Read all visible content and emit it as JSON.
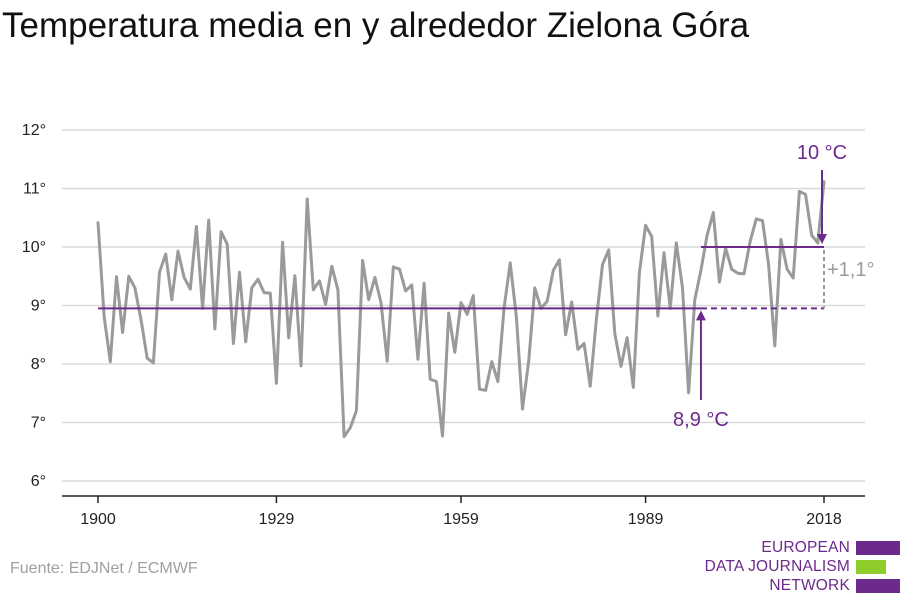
{
  "title": "Temperatura media en y alrededor Zielona Góra",
  "source": "Fuente: EDJNet / ECMWF",
  "logo": {
    "lines": [
      "EUROPEAN",
      "DATA JOURNALISM",
      "NETWORK"
    ],
    "colors": [
      "#6b2a8c",
      "#8fce2a",
      "#6b2a8c"
    ]
  },
  "colors": {
    "series": "#9a9a9a",
    "accent": "#6b2a8c",
    "grid": "#d9d9d9",
    "axis": "#222222"
  },
  "chart_data": {
    "type": "line",
    "title": "Temperatura media en y alrededor Zielona Góra",
    "xlabel": "",
    "ylabel": "",
    "xlim": [
      1900,
      2018
    ],
    "ylim": [
      6,
      12
    ],
    "grid": true,
    "x_ticks": [
      1900,
      1929,
      1959,
      1989,
      2018
    ],
    "x_tick_labels": [
      "1900",
      "1929",
      "1959",
      "1989",
      "2018"
    ],
    "y_ticks": [
      6,
      7,
      8,
      9,
      10,
      11,
      12
    ],
    "y_tick_labels": [
      "6°",
      "7°",
      "8°",
      "9°",
      "10°",
      "11°",
      "12°"
    ],
    "x": [
      1900,
      1901,
      1902,
      1903,
      1904,
      1905,
      1906,
      1907,
      1908,
      1909,
      1910,
      1911,
      1912,
      1913,
      1914,
      1915,
      1916,
      1917,
      1918,
      1919,
      1920,
      1921,
      1922,
      1923,
      1924,
      1925,
      1926,
      1927,
      1928,
      1929,
      1930,
      1931,
      1932,
      1933,
      1934,
      1935,
      1936,
      1937,
      1938,
      1939,
      1940,
      1941,
      1942,
      1943,
      1944,
      1945,
      1946,
      1947,
      1948,
      1949,
      1950,
      1951,
      1952,
      1953,
      1954,
      1955,
      1956,
      1957,
      1958,
      1959,
      1960,
      1961,
      1962,
      1963,
      1964,
      1965,
      1966,
      1967,
      1968,
      1969,
      1970,
      1971,
      1972,
      1973,
      1974,
      1975,
      1976,
      1977,
      1978,
      1979,
      1980,
      1981,
      1982,
      1983,
      1984,
      1985,
      1986,
      1987,
      1988,
      1989,
      1990,
      1991,
      1992,
      1993,
      1994,
      1995,
      1996,
      1997,
      1998,
      1999,
      2000,
      2001,
      2002,
      2003,
      2004,
      2005,
      2006,
      2007,
      2008,
      2009,
      2010,
      2011,
      2012,
      2013,
      2014,
      2015,
      2016,
      2017,
      2018
    ],
    "values": [
      10.42,
      8.8,
      8.04,
      9.49,
      8.54,
      9.5,
      9.3,
      8.75,
      8.1,
      8.02,
      9.57,
      9.88,
      9.1,
      9.93,
      9.48,
      9.28,
      10.35,
      8.95,
      10.46,
      8.6,
      10.26,
      10.05,
      8.35,
      9.57,
      8.38,
      9.3,
      9.45,
      9.22,
      9.21,
      7.67,
      10.08,
      8.45,
      9.51,
      7.97,
      10.82,
      9.27,
      9.42,
      9.02,
      9.67,
      9.27,
      6.76,
      6.91,
      7.2,
      9.77,
      9.1,
      9.48,
      9.05,
      8.05,
      9.66,
      9.62,
      9.25,
      9.35,
      8.08,
      9.38,
      7.74,
      7.7,
      6.77,
      8.87,
      8.2,
      9.05,
      8.85,
      9.17,
      7.57,
      7.55,
      8.04,
      7.7,
      8.96,
      9.73,
      8.8,
      7.23,
      8.05,
      9.3,
      8.95,
      9.07,
      9.6,
      9.78,
      8.5,
      9.06,
      8.25,
      8.35,
      7.62,
      8.77,
      9.7,
      9.95,
      8.52,
      7.96,
      8.45,
      7.6,
      9.56,
      10.37,
      10.18,
      8.82,
      9.9,
      8.95,
      10.07,
      9.3,
      7.51,
      9.1,
      9.6,
      10.2,
      10.59,
      9.4,
      9.98,
      9.62,
      9.55,
      9.54,
      10.1,
      10.48,
      10.45,
      9.7,
      8.31,
      10.13,
      9.62,
      9.47,
      10.95,
      10.9,
      10.2,
      10.07,
      11.12
    ],
    "reference_lines": [
      {
        "label": "8,9 °C",
        "value": 8.95
      },
      {
        "label": "10 °C",
        "value": 10.0
      }
    ],
    "difference_label": "+1,1°"
  }
}
